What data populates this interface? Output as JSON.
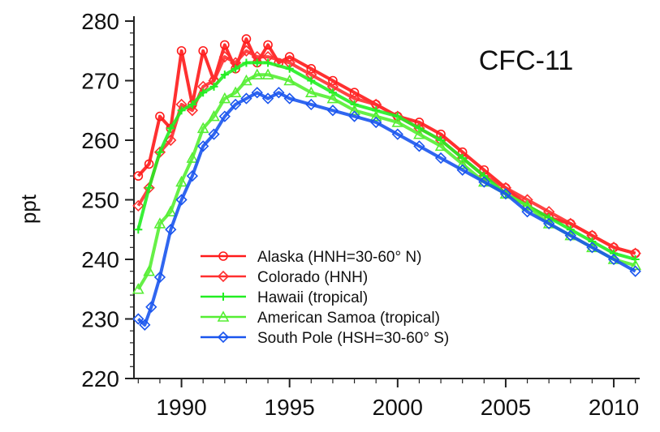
{
  "chart_data": {
    "type": "line",
    "title": "CFC-11",
    "xlabel": "",
    "ylabel": "ppt",
    "xlim": [
      1987.8,
      2011.2
    ],
    "ylim": [
      220,
      280
    ],
    "x_ticks": [
      1990,
      1995,
      2000,
      2005,
      2010
    ],
    "y_ticks": [
      220,
      230,
      240,
      250,
      260,
      270,
      280
    ],
    "grid": false,
    "legend_position": "bottom-center",
    "series": [
      {
        "name": "Alaska (HNH=30-60° N)",
        "color": "#ff1a1a",
        "marker": "circle",
        "x": [
          1988,
          1988.5,
          1989,
          1989.5,
          1990,
          1990.5,
          1991,
          1991.5,
          1992,
          1992.5,
          1993,
          1993.5,
          1994,
          1994.5,
          1995,
          1996,
          1997,
          1998,
          1999,
          2000,
          2001,
          2002,
          2003,
          2004,
          2005,
          2006,
          2007,
          2008,
          2009,
          2010,
          2011
        ],
        "y": [
          254,
          256,
          264,
          262,
          275,
          266,
          275,
          270,
          276,
          272,
          277,
          273,
          276,
          273,
          274,
          272,
          270,
          268,
          266,
          264,
          263,
          261,
          258,
          255,
          252,
          249,
          247,
          246,
          244,
          242,
          241
        ]
      },
      {
        "name": "Colorado (HNH)",
        "color": "#ff3030",
        "marker": "diamond",
        "x": [
          1988,
          1988.5,
          1989,
          1989.5,
          1990,
          1990.5,
          1991,
          1991.5,
          1992,
          1992.5,
          1993,
          1993.5,
          1994,
          1995,
          1996,
          1997,
          1998,
          1999,
          2000,
          2001,
          2002,
          2003,
          2004,
          2005,
          2006,
          2007,
          2008,
          2009,
          2010,
          2011
        ],
        "y": [
          249,
          252,
          258,
          260,
          266,
          265,
          269,
          270,
          274,
          273,
          275,
          274,
          274,
          273,
          271,
          269,
          267,
          266,
          264,
          262,
          260,
          257,
          254,
          252,
          250,
          248,
          246,
          244,
          242,
          241
        ]
      },
      {
        "name": "Hawaii (tropical)",
        "color": "#22ee22",
        "marker": "plus",
        "x": [
          1988,
          1988.5,
          1989,
          1989.5,
          1990,
          1990.5,
          1991,
          1991.5,
          1992,
          1992.5,
          1993,
          1993.5,
          1994,
          1995,
          1996,
          1997,
          1998,
          1999,
          2000,
          2001,
          2002,
          2003,
          2004,
          2005,
          2006,
          2007,
          2008,
          2009,
          2010,
          2011
        ],
        "y": [
          245,
          252,
          258,
          262,
          265,
          266,
          268,
          269,
          271,
          272,
          273,
          273,
          273,
          272,
          270,
          268,
          266,
          265,
          264,
          262,
          260,
          257,
          254,
          251,
          249,
          247,
          245,
          243,
          241,
          240
        ]
      },
      {
        "name": "American Samoa (tropical)",
        "color": "#55ee33",
        "marker": "triangle",
        "x": [
          1988,
          1988.5,
          1989,
          1989.5,
          1990,
          1990.5,
          1991,
          1991.5,
          1992,
          1992.5,
          1993,
          1993.5,
          1994,
          1995,
          1996,
          1997,
          1998,
          1999,
          2000,
          2001,
          2002,
          2003,
          2004,
          2005,
          2006,
          2007,
          2008,
          2009,
          2010,
          2011
        ],
        "y": [
          235,
          238,
          246,
          248,
          253,
          257,
          262,
          264,
          267,
          268,
          270,
          271,
          271,
          270,
          268,
          267,
          265,
          264,
          263,
          261,
          259,
          256,
          253,
          251,
          249,
          246,
          244,
          242,
          240,
          239
        ]
      },
      {
        "name": "South Pole (HSH=30-60° S)",
        "color": "#1a55ee",
        "marker": "diamond",
        "x": [
          1988,
          1988.3,
          1988.6,
          1989,
          1989.5,
          1990,
          1990.5,
          1991,
          1991.5,
          1992,
          1992.5,
          1993,
          1993.5,
          1994,
          1994.5,
          1995,
          1996,
          1997,
          1998,
          1999,
          2000,
          2001,
          2002,
          2003,
          2004,
          2005,
          2006,
          2007,
          2008,
          2009,
          2010,
          2011
        ],
        "y": [
          230,
          229,
          232,
          237,
          245,
          250,
          254,
          259,
          261,
          264,
          266,
          267,
          268,
          267,
          268,
          267,
          266,
          265,
          264,
          263,
          261,
          259,
          257,
          255,
          253,
          251,
          248,
          246,
          244,
          242,
          240,
          238
        ]
      }
    ]
  }
}
